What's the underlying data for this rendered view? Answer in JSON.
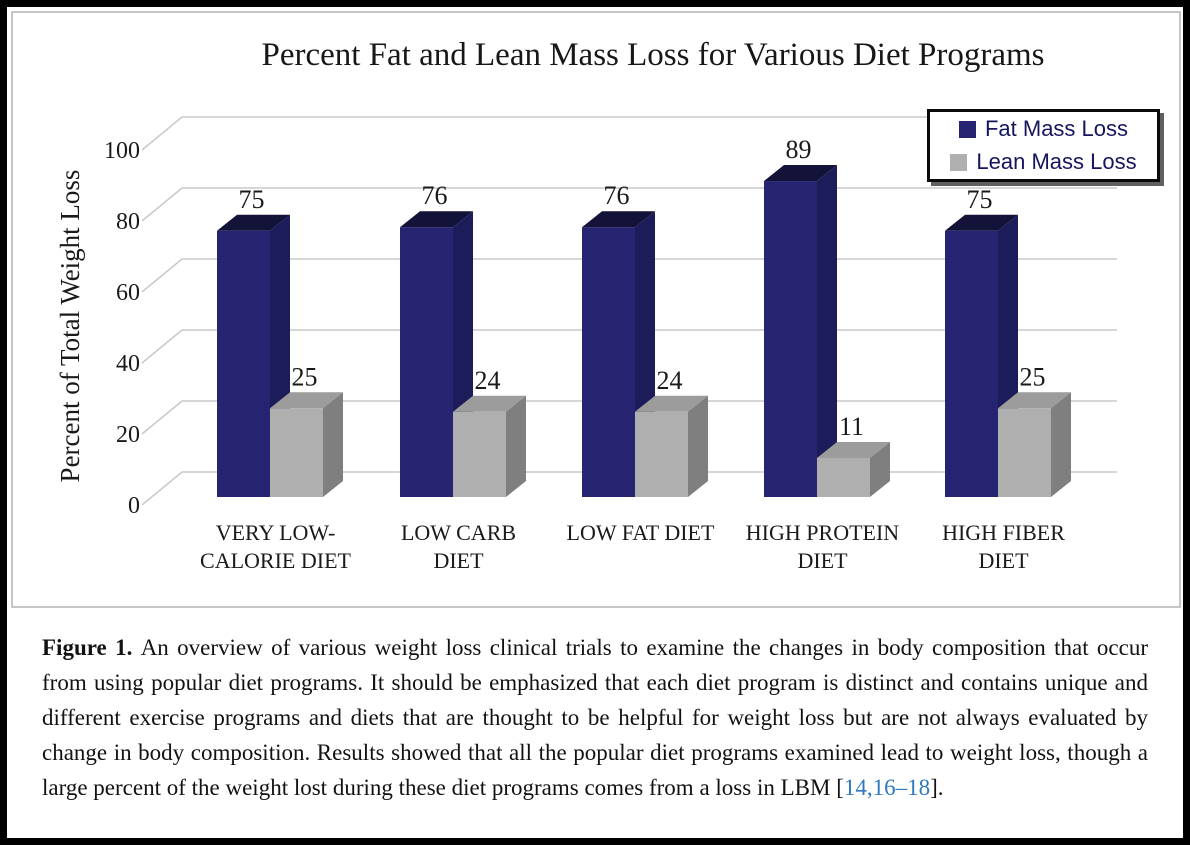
{
  "figure": {
    "caption": {
      "label": "Figure 1. ",
      "body": "An overview of various weight loss clinical trials to examine the changes in body composition that occur from using popular diet programs.  It should be emphasized that each diet program is distinct and contains unique and different exercise programs and diets that are thought to be helpful for weight loss but are not always evaluated by change in body composition. Results showed that all the popular diet programs examined lead to weight loss, though a large percent of the weight lost during these diet programs comes from a loss in LBM",
      "bracket_open": " [",
      "citation": "14,16–18",
      "bracket_close": "]."
    }
  },
  "chart_data": {
    "type": "bar",
    "variant": "3d-clustered-column",
    "title": "Percent Fat and Lean Mass Loss for Various Diet Programs",
    "xlabel": "",
    "ylabel": "Percent of Total Weight Loss",
    "ylim": [
      0,
      100
    ],
    "yticks": [
      0,
      20,
      40,
      60,
      80,
      100
    ],
    "grid": true,
    "legend_position": "top-right",
    "value_labels": true,
    "categories": [
      "VERY LOW-CALORIE DIET",
      "LOW CARB DIET",
      "LOW FAT DIET",
      "HIGH PROTEIN DIET",
      "HIGH FIBER DIET"
    ],
    "category_label_lines": [
      [
        "VERY LOW-",
        "CALORIE DIET"
      ],
      [
        "LOW CARB",
        "DIET"
      ],
      [
        "LOW FAT DIET"
      ],
      [
        "HIGH PROTEIN",
        "DIET"
      ],
      [
        "HIGH FIBER",
        "DIET"
      ]
    ],
    "series": [
      {
        "name": "Fat Mass Loss",
        "values": [
          75,
          76,
          76,
          89,
          75
        ],
        "color": "#262470",
        "color_side": "#1D1C5B",
        "color_top": "#131238"
      },
      {
        "name": "Lean Mass Loss",
        "values": [
          25,
          24,
          24,
          11,
          25
        ],
        "color": "#AFAFAF",
        "color_side": "#7F7F7F",
        "color_top": "#9C9C9C"
      }
    ],
    "colors": {
      "gridline": "#C9C9C9",
      "text": "#1A1A1A",
      "legend_text": "#15155E",
      "citation_link": "#2E78BF"
    }
  }
}
